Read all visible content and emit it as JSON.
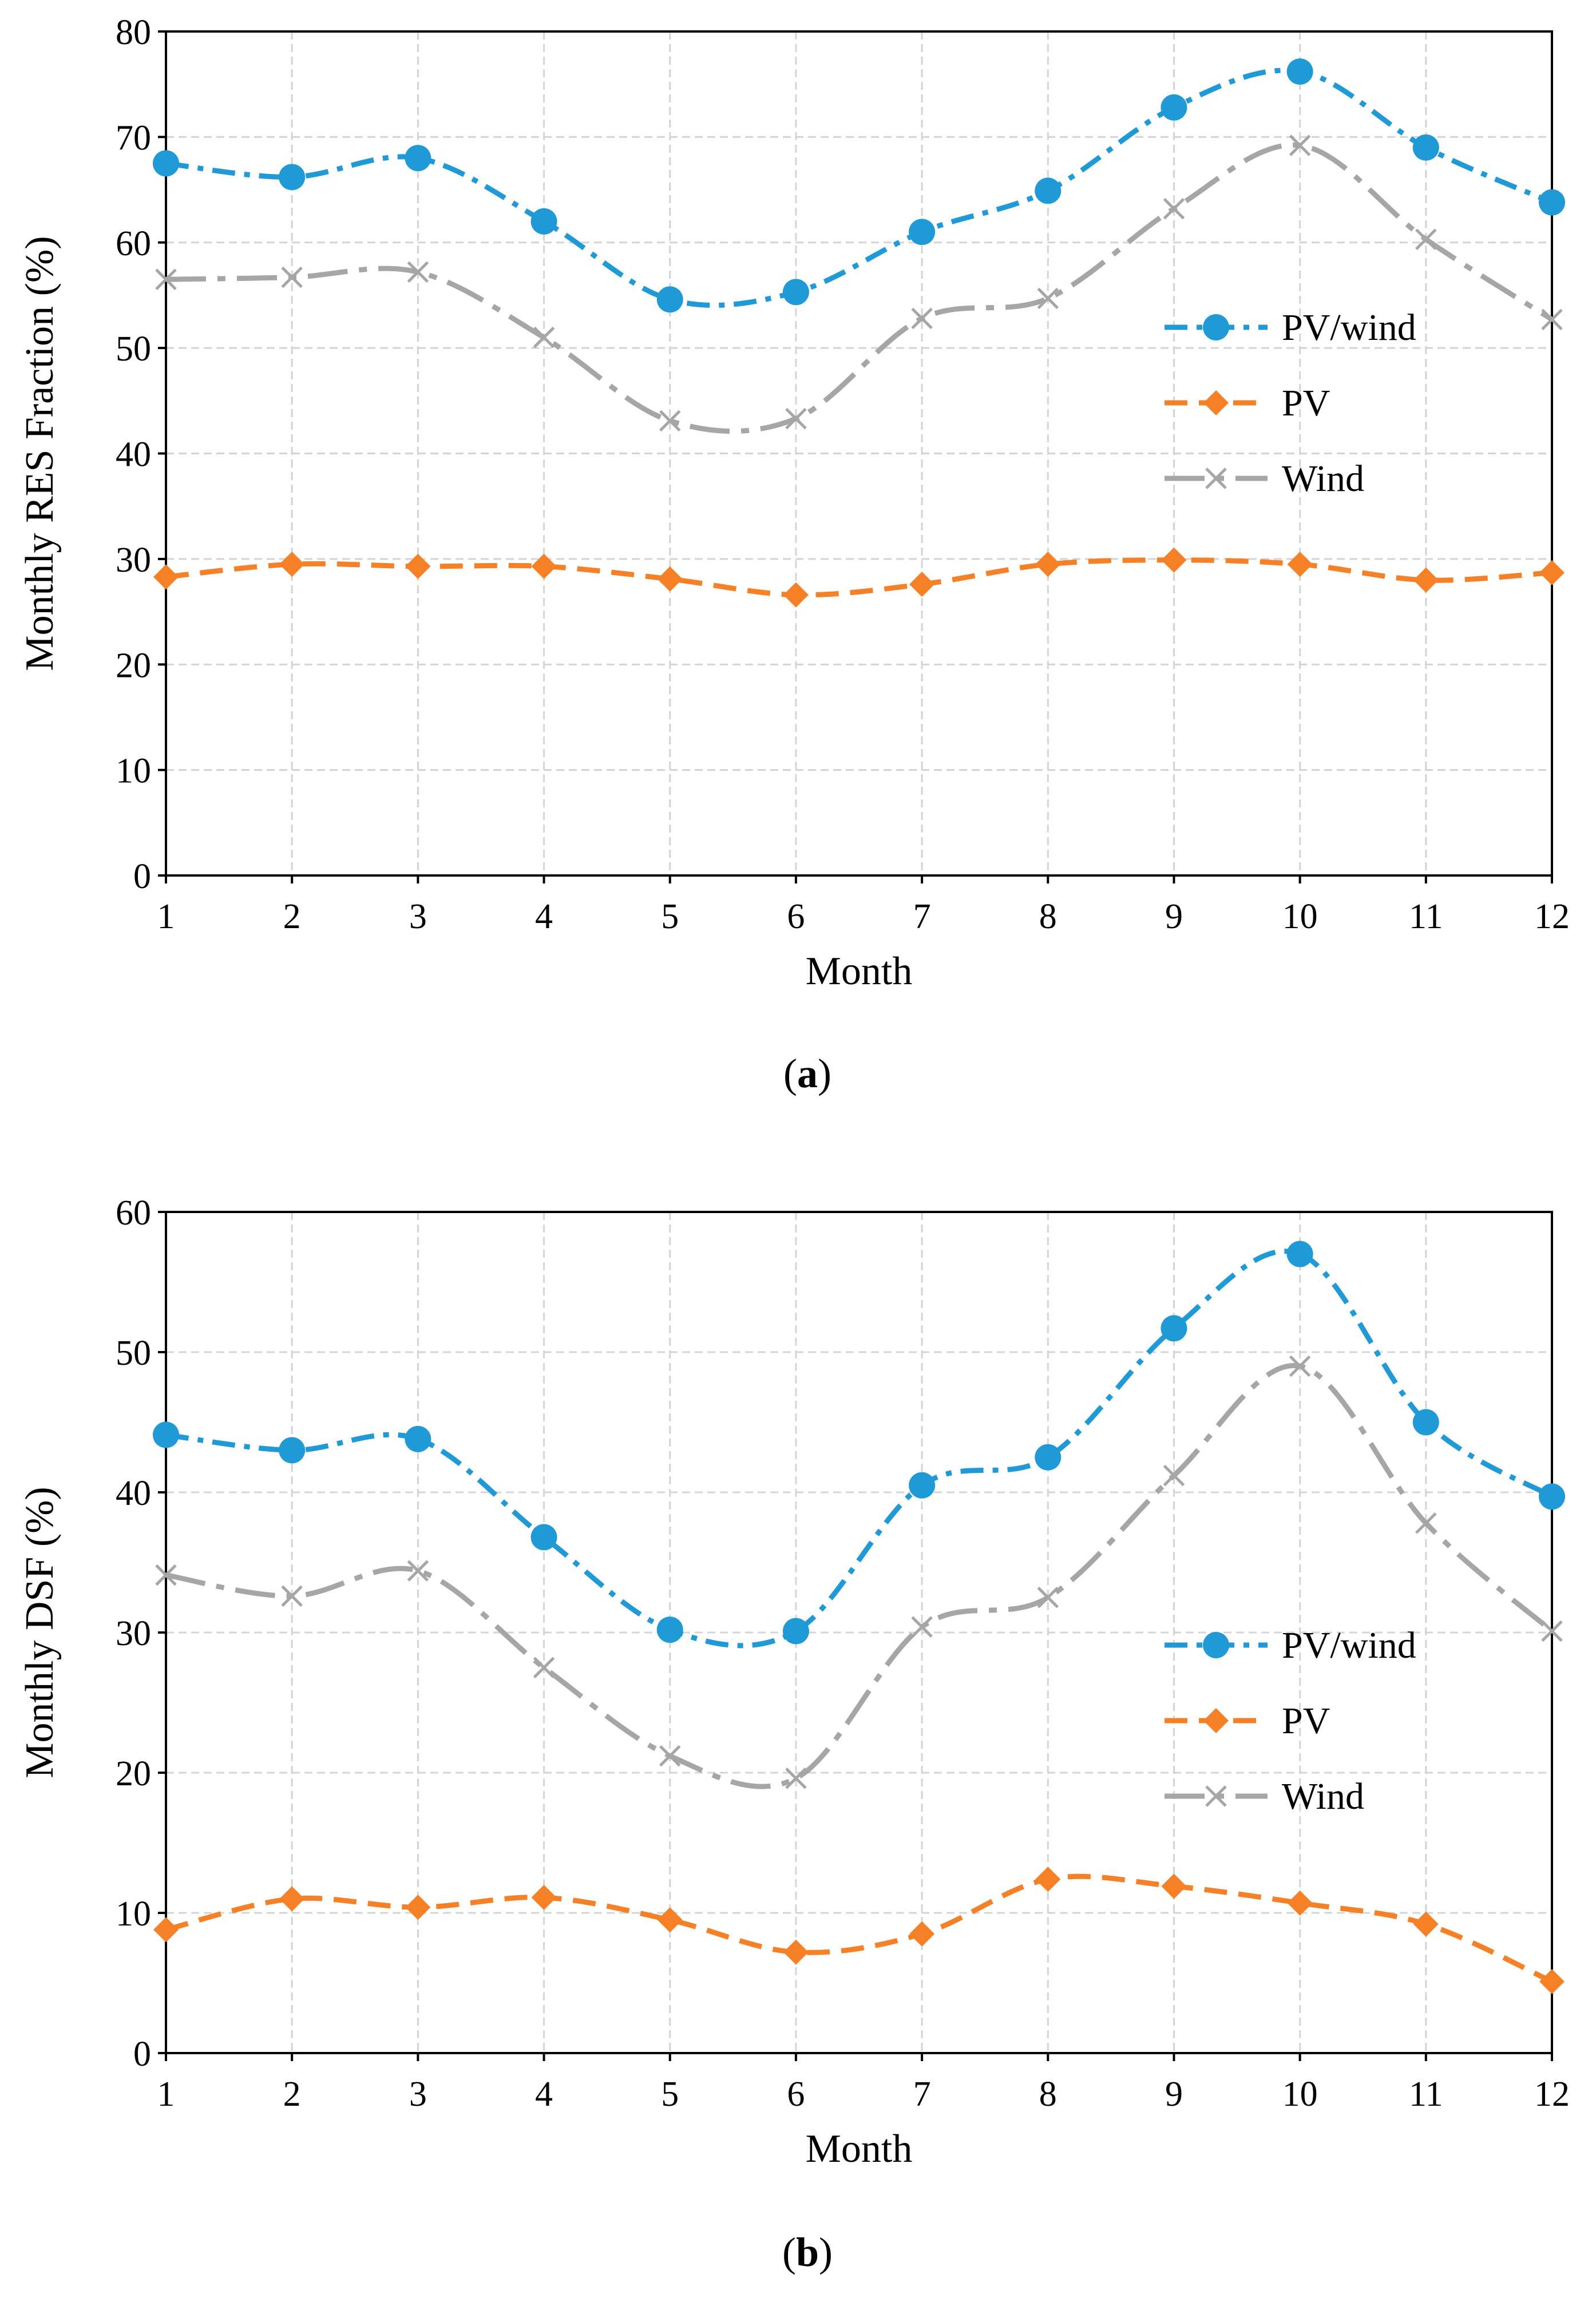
{
  "chart_data": [
    {
      "type": "line",
      "panel_label": "a",
      "xlabel": "Month",
      "ylabel": "Monthly RES Fraction (%)",
      "x": [
        1,
        2,
        3,
        4,
        5,
        6,
        7,
        8,
        9,
        10,
        11,
        12
      ],
      "xlim": [
        1,
        12
      ],
      "ylim": [
        0,
        80
      ],
      "y_ticks": [
        0,
        10,
        20,
        30,
        40,
        50,
        60,
        70,
        80
      ],
      "grid": true,
      "legend_position": "right",
      "series": [
        {
          "name": "PV/wind",
          "color": "#1f9ad6",
          "marker": "circle",
          "line_style": "dash-dot",
          "values": [
            67.5,
            66.2,
            68.0,
            62.0,
            54.6,
            55.3,
            61.0,
            64.9,
            72.8,
            76.2,
            69.0,
            63.8
          ]
        },
        {
          "name": "PV",
          "color": "#f58026",
          "marker": "diamond",
          "line_style": "dashed",
          "values": [
            28.3,
            29.5,
            29.3,
            29.3,
            28.1,
            26.6,
            27.6,
            29.5,
            29.9,
            29.5,
            28.0,
            28.7
          ]
        },
        {
          "name": "Wind",
          "color": "#a6a6a6",
          "marker": "x",
          "line_style": "long-dash-dot",
          "values": [
            56.5,
            56.7,
            57.2,
            51.0,
            43.1,
            43.3,
            52.8,
            54.7,
            63.2,
            69.2,
            60.3,
            52.7
          ]
        }
      ]
    },
    {
      "type": "line",
      "panel_label": "b",
      "xlabel": "Month",
      "ylabel": "Monthly DSF (%)",
      "x": [
        1,
        2,
        3,
        4,
        5,
        6,
        7,
        8,
        9,
        10,
        11,
        12
      ],
      "xlim": [
        1,
        12
      ],
      "ylim": [
        0,
        60
      ],
      "y_ticks": [
        0,
        10,
        20,
        30,
        40,
        50,
        60
      ],
      "grid": true,
      "legend_position": "right",
      "series": [
        {
          "name": "PV/wind",
          "color": "#1f9ad6",
          "marker": "circle",
          "line_style": "dash-dot",
          "values": [
            44.1,
            43.0,
            43.8,
            36.8,
            30.2,
            30.1,
            40.5,
            42.5,
            51.7,
            57.0,
            45.0,
            39.7
          ]
        },
        {
          "name": "PV",
          "color": "#f58026",
          "marker": "diamond",
          "line_style": "dashed",
          "values": [
            8.8,
            11.0,
            10.4,
            11.1,
            9.5,
            7.2,
            8.5,
            12.4,
            11.9,
            10.7,
            9.2,
            5.1
          ]
        },
        {
          "name": "Wind",
          "color": "#a6a6a6",
          "marker": "x",
          "line_style": "long-dash-dot",
          "values": [
            34.1,
            32.6,
            34.4,
            27.5,
            21.2,
            19.6,
            30.4,
            32.5,
            41.2,
            49.0,
            37.8,
            30.1
          ]
        }
      ]
    }
  ]
}
